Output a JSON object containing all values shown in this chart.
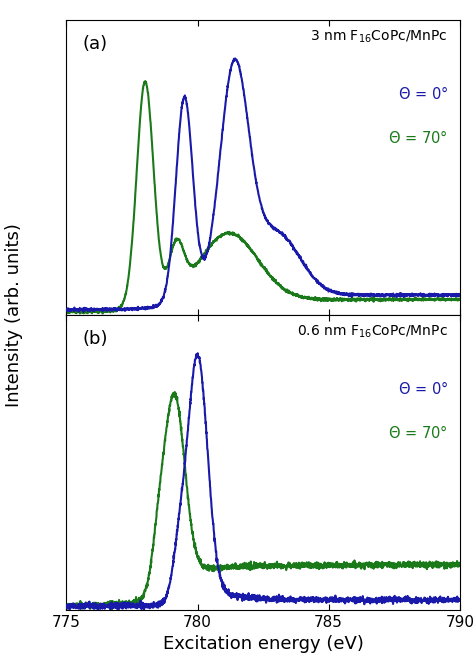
{
  "x_min": 775,
  "x_max": 790,
  "xlabel": "Excitation energy (eV)",
  "ylabel": "Intensity (arb. units)",
  "color_blue": "#1a1aaa",
  "color_green": "#1a7a1a",
  "panel_a_label": "(a)",
  "panel_b_label": "(b)",
  "xticks": [
    775,
    780,
    785,
    790
  ],
  "background_color": "#ffffff",
  "lw": 1.5,
  "noise_a": 0.003,
  "noise_b": 0.006
}
